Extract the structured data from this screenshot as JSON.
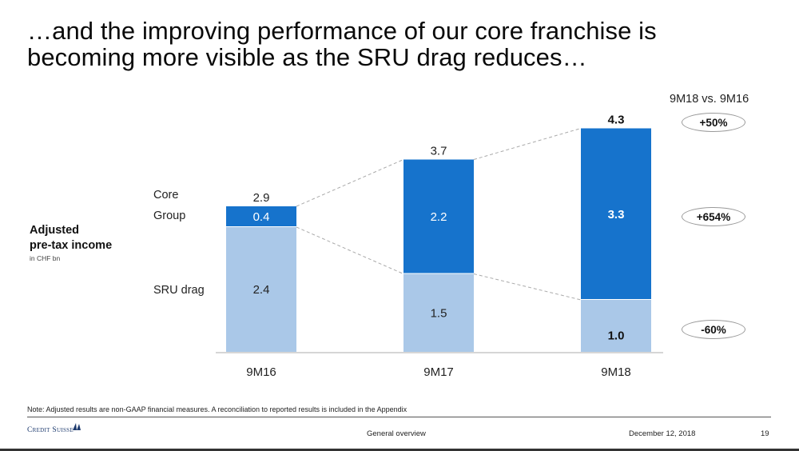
{
  "slide": {
    "title_lines": [
      "…and the improving performance of our core franchise is",
      "becoming more visible as the SRU drag reduces…"
    ],
    "y_label": {
      "line1": "Adjusted",
      "line2": "pre-tax income",
      "unit": "in CHF bn"
    },
    "legend": {
      "core": "Core",
      "group": "Group",
      "sru": "SRU drag"
    },
    "comparison": {
      "header": "9M18 vs. 9M16",
      "core_change": "+50%",
      "group_change": "+654%",
      "sru_change": "-60%"
    },
    "note": "Note: Adjusted results are non-GAAP financial measures. A reconciliation to reported results is included in the Appendix",
    "footer": {
      "logo": "Credit Suisse",
      "section": "General overview",
      "date": "December 12, 2018",
      "page": "19"
    },
    "colors": {
      "group_bar": "#1673cc",
      "sru_bar": "#aac8e8",
      "connector": "#aaaaaa",
      "axis": "#c8c8c8"
    }
  },
  "chart_data": {
    "type": "bar",
    "stacked": true,
    "title": "Adjusted pre-tax income",
    "ylabel": "in CHF bn",
    "xlabel": "",
    "categories": [
      "9M16",
      "9M17",
      "9M18"
    ],
    "series": [
      {
        "name": "SRU drag",
        "values": [
          2.4,
          1.5,
          1.0
        ],
        "labels": [
          "2.4",
          "1.5",
          "1.0"
        ]
      },
      {
        "name": "Group",
        "values": [
          0.4,
          2.2,
          3.3
        ],
        "labels": [
          "0.4",
          "2.2",
          "3.3"
        ]
      }
    ],
    "totals": {
      "name": "Core",
      "values": [
        2.9,
        3.7,
        4.3
      ],
      "labels": [
        "2.9",
        "3.7",
        "4.3"
      ]
    },
    "ylim": [
      0,
      4.5
    ],
    "grid": false,
    "annotations": [
      "9M18 vs. 9M16",
      "+50%",
      "+654%",
      "-60%"
    ]
  }
}
